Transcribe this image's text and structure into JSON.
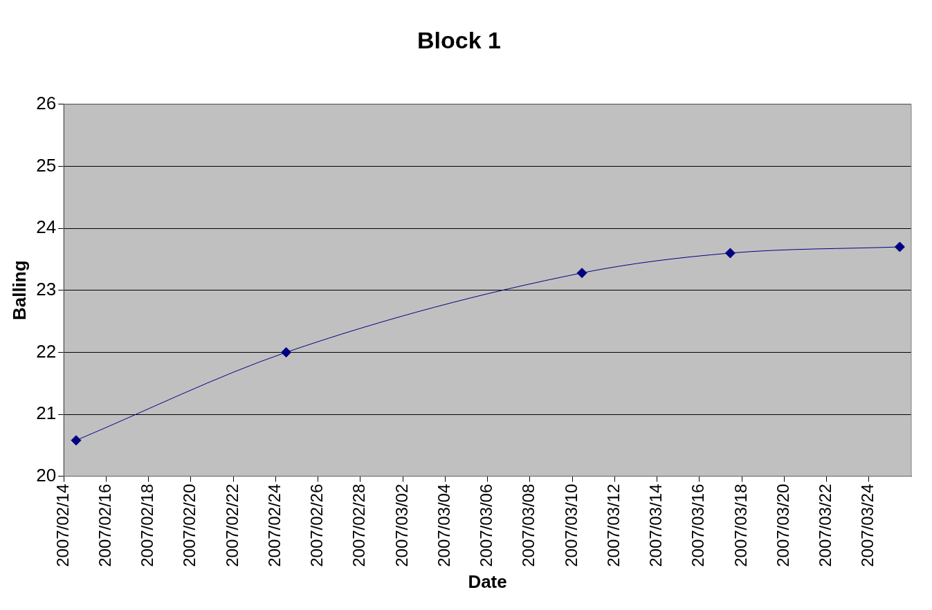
{
  "chart_data": {
    "type": "line",
    "title": "Block 1",
    "xlabel": "Date",
    "ylabel": "Balling",
    "series": [
      {
        "color": "#000080",
        "x": [
          "2007-02-14T14:00",
          "2007-02-24T12:00",
          "2007-03-10T11:00",
          "2007-03-17T11:00",
          "2007-03-25T11:00"
        ],
        "values": [
          20.58,
          22.0,
          23.28,
          23.6,
          23.7
        ]
      }
    ],
    "xlim": [
      "2007-02-14",
      "2007-03-26"
    ],
    "xticks": [
      {
        "value": "2007-02-14",
        "label": "2007/02/14"
      },
      {
        "value": "2007-02-16",
        "label": "2007/02/16"
      },
      {
        "value": "2007-02-18",
        "label": "2007/02/18"
      },
      {
        "value": "2007-02-20",
        "label": "2007/02/20"
      },
      {
        "value": "2007-02-22",
        "label": "2007/02/22"
      },
      {
        "value": "2007-02-24",
        "label": "2007/02/24"
      },
      {
        "value": "2007-02-26",
        "label": "2007/02/26"
      },
      {
        "value": "2007-02-28",
        "label": "2007/02/28"
      },
      {
        "value": "2007-03-02",
        "label": "2007/03/02"
      },
      {
        "value": "2007-03-04",
        "label": "2007/03/04"
      },
      {
        "value": "2007-03-06",
        "label": "2007/03/06"
      },
      {
        "value": "2007-03-08",
        "label": "2007/03/08"
      },
      {
        "value": "2007-03-10",
        "label": "2007/03/10"
      },
      {
        "value": "2007-03-12",
        "label": "2007/03/12"
      },
      {
        "value": "2007-03-14",
        "label": "2007/03/14"
      },
      {
        "value": "2007-03-16",
        "label": "2007/03/16"
      },
      {
        "value": "2007-03-18",
        "label": "2007/03/18"
      },
      {
        "value": "2007-03-20",
        "label": "2007/03/20"
      },
      {
        "value": "2007-03-22",
        "label": "2007/03/22"
      },
      {
        "value": "2007-03-24",
        "label": "2007/03/24"
      }
    ],
    "ylim": [
      20,
      26
    ],
    "yticks": [
      20,
      21,
      22,
      23,
      24,
      25,
      26
    ],
    "grid": "y",
    "legend": false,
    "marker": "diamond",
    "line_style": "solid"
  }
}
